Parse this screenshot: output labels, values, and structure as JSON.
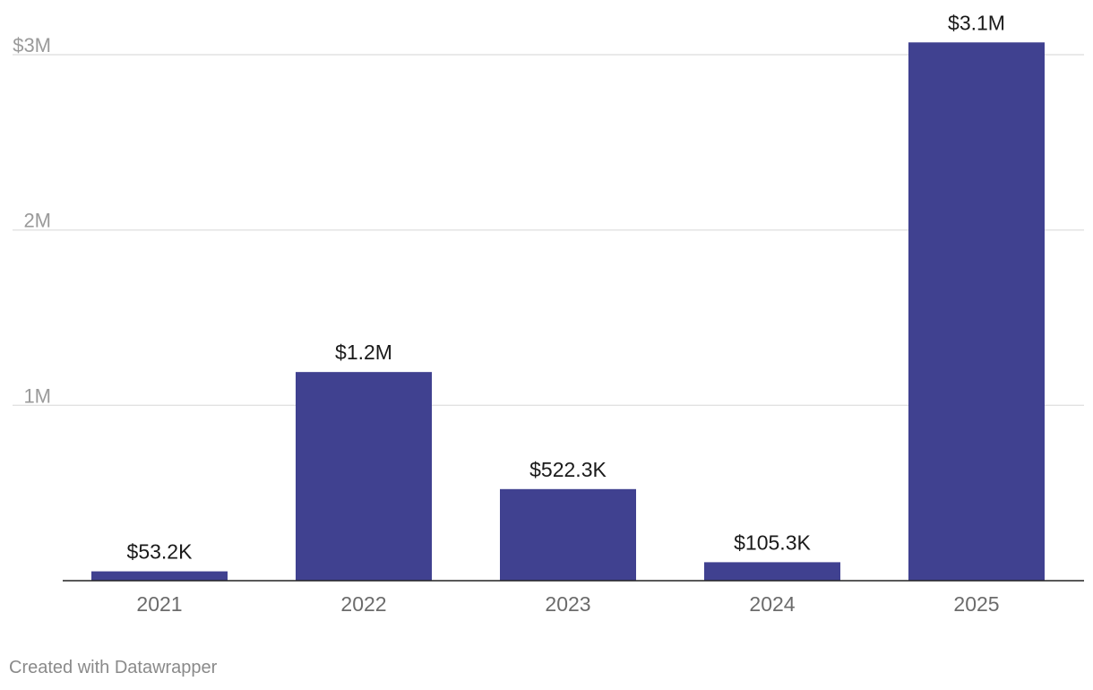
{
  "chart_data": {
    "type": "bar",
    "categories": [
      "2021",
      "2022",
      "2023",
      "2024",
      "2025"
    ],
    "values": [
      53200,
      1190000,
      522300,
      105300,
      3070000
    ],
    "value_labels": [
      "$53.2K",
      "$1.2M",
      "$522.3K",
      "$105.3K",
      "$3.1M"
    ],
    "title": "",
    "xlabel": "",
    "ylabel": "",
    "ylim": [
      0,
      3000000
    ],
    "y_ticks": [
      {
        "value": 1000000,
        "label": "1M"
      },
      {
        "value": 2000000,
        "label": "2M"
      },
      {
        "value": 3000000,
        "label": "$3M"
      }
    ],
    "grid": true,
    "legend": "none",
    "bar_color": "#404190"
  },
  "credit": "Created with Datawrapper"
}
